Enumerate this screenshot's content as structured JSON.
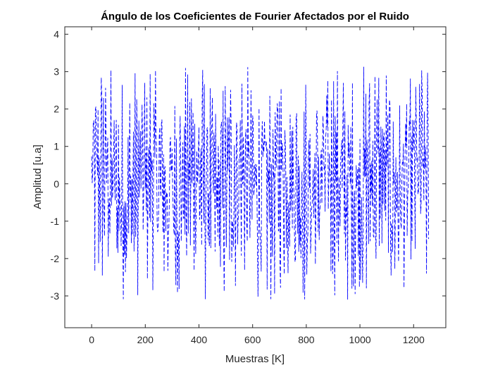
{
  "chart_data": {
    "type": "line",
    "title": "Ángulo de los Coeficientes de Fourier Afectados por el Ruido",
    "xlabel": "Muestras [K]",
    "ylabel": "Amplitud [u.a]",
    "xlim": [
      -100,
      1320
    ],
    "ylim": [
      -3.85,
      4.2
    ],
    "xticks": [
      0,
      200,
      400,
      600,
      800,
      1000,
      1200
    ],
    "yticks": [
      4,
      3,
      2,
      1,
      0,
      -1,
      -2,
      -3
    ],
    "grid": false,
    "line_style": "dashed",
    "series": [
      {
        "color": "#0000ff",
        "x_range": [
          0,
          1256
        ],
        "y_range": [
          -3.14,
          3.14
        ],
        "values_sample": [
          -2.9,
          2.6,
          -1.4,
          2.7,
          -2.2,
          0.8,
          2.9,
          -2.6,
          1.9,
          -0.5,
          3.1,
          -2.8,
          2.2,
          -1.7,
          0.4,
          2.9,
          -3.0,
          1.6,
          -2.3,
          2.8,
          -0.9,
          2.5,
          -2.9,
          1.2,
          3.0,
          -2.4,
          0.6,
          -1.9,
          2.7,
          -3.1
        ]
      }
    ],
    "colors": {
      "series": "#0000ff",
      "axes": "#262626",
      "background": "#ffffff"
    }
  }
}
